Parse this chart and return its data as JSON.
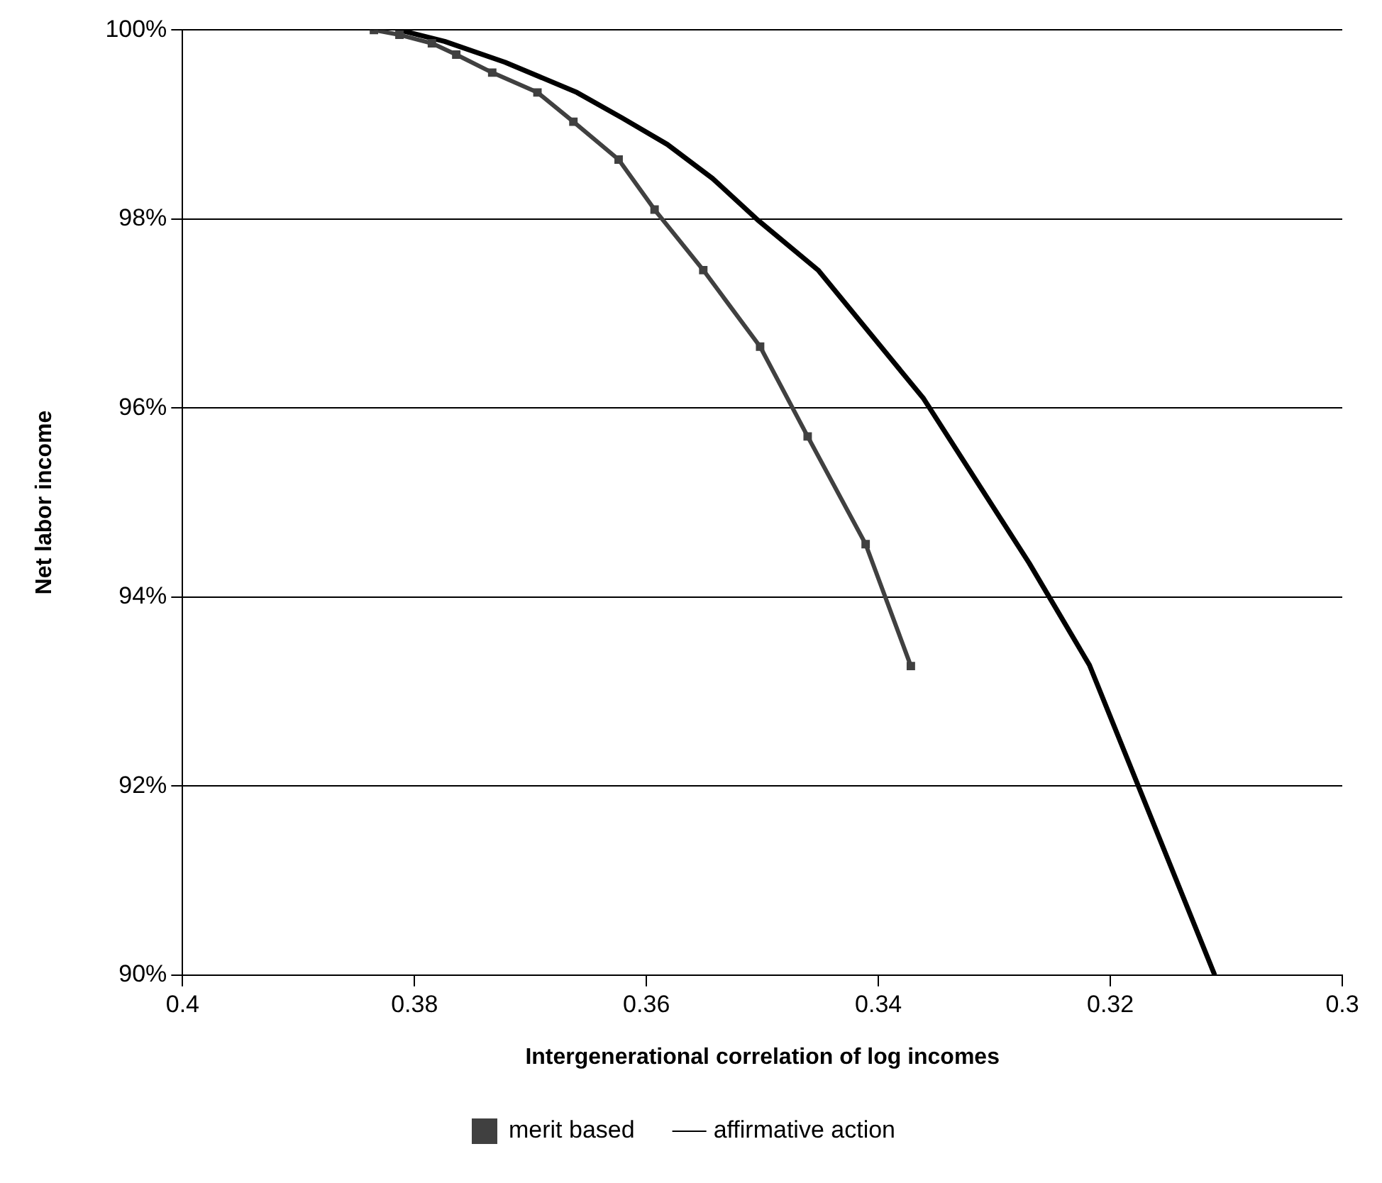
{
  "chart_data": {
    "type": "line",
    "xlabel": "Intergenerational correlation of log incomes",
    "ylabel": "Net labor income",
    "xlim": [
      0.4,
      0.3
    ],
    "xticks": [
      0.4,
      0.38,
      0.36,
      0.34,
      0.32,
      0.3
    ],
    "ylim": [
      90,
      100
    ],
    "yticks": [
      {
        "value": 90,
        "label": "90%"
      },
      {
        "value": 92,
        "label": "92%"
      },
      {
        "value": 94,
        "label": "94%"
      },
      {
        "value": 96,
        "label": "96%"
      },
      {
        "value": 98,
        "label": "98%"
      },
      {
        "value": 100,
        "label": "100%"
      }
    ],
    "grid": "y",
    "legend": "bottom",
    "line_style": "solid",
    "series": [
      {
        "name": "merit based",
        "color": "#404040",
        "marker": "square",
        "x": [
          0.3835,
          0.3813,
          0.3785,
          0.3764,
          0.3733,
          0.3694,
          0.3663,
          0.3624,
          0.3593,
          0.3551,
          0.3502,
          0.3461,
          0.3411,
          0.3372
        ],
        "values": [
          100,
          99.95,
          99.86,
          99.74,
          99.55,
          99.34,
          99.03,
          98.63,
          98.1,
          97.46,
          96.65,
          95.7,
          94.56,
          93.27
        ]
      },
      {
        "name": "affirmative action",
        "color": "#000000",
        "marker": "none",
        "x": [
          0.3813,
          0.3774,
          0.3722,
          0.366,
          0.3621,
          0.3582,
          0.3543,
          0.3504,
          0.3452,
          0.3361,
          0.327,
          0.3218,
          0.311
        ],
        "values": [
          100,
          99.88,
          99.66,
          99.34,
          99.07,
          98.79,
          98.43,
          97.99,
          97.46,
          96.1,
          94.36,
          93.28,
          90
        ]
      }
    ]
  }
}
